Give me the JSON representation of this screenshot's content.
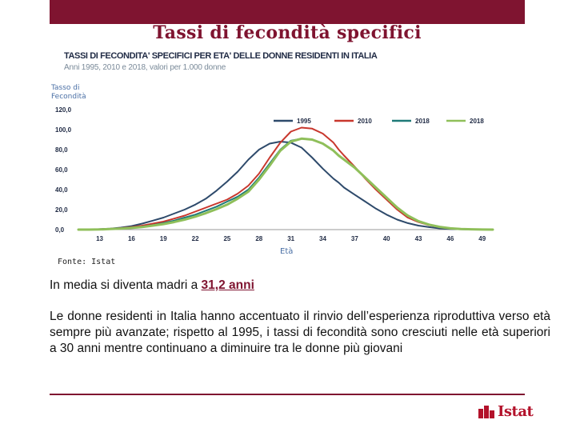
{
  "header": {
    "title": "Tassi di fecondità specifici"
  },
  "chart_data": {
    "type": "line",
    "title": "TASSI DI FECONDITA' SPECIFICI PER ETA' DELLE DONNE RESIDENTI IN ITALIA",
    "subtitle": "Anni 1995, 2010 e 2018, valori per 1.000 donne",
    "ylabel": "Tasso di Fecondità",
    "xlabel": "Età",
    "source": "Fonte: Istat",
    "ylim": [
      0,
      120
    ],
    "xlim": [
      11,
      50
    ],
    "y_ticks": [
      "0,0",
      "20,0",
      "40,0",
      "60,0",
      "80,0",
      "100,0",
      "120,0"
    ],
    "x_ticks": [
      13,
      16,
      19,
      22,
      25,
      28,
      31,
      34,
      37,
      40,
      43,
      46,
      49
    ],
    "legend_position": "top-right",
    "grid": false,
    "x": [
      11,
      12,
      13,
      14,
      15,
      16,
      17,
      18,
      19,
      20,
      21,
      22,
      23,
      24,
      25,
      26,
      27,
      28,
      29,
      30,
      31,
      32,
      33,
      34,
      35,
      35.5,
      36,
      37,
      38,
      39,
      40,
      41,
      42,
      43,
      44,
      45,
      46,
      47,
      48,
      49,
      50
    ],
    "series": [
      {
        "name": "1995",
        "color": "#2e4a6b",
        "values": [
          0,
          0,
          0.5,
          1,
          2,
          3.5,
          6,
          9,
          12,
          16,
          20,
          25,
          31,
          39,
          48,
          58,
          70,
          80,
          86,
          88,
          87,
          82,
          72,
          61,
          51,
          47,
          42,
          35,
          28,
          21,
          15,
          10,
          6.5,
          4,
          2.5,
          1.2,
          0.6,
          0.3,
          0.1,
          0.1,
          0
        ]
      },
      {
        "name": "2010",
        "color": "#c8372d",
        "values": [
          0,
          0,
          0.3,
          0.8,
          1.5,
          2.5,
          4,
          6,
          8,
          11,
          14,
          18,
          22,
          26,
          30,
          36,
          44,
          56,
          72,
          87,
          98,
          102,
          101,
          96,
          87,
          80,
          74,
          63,
          51,
          40,
          30,
          20,
          12,
          7.5,
          4.5,
          2.5,
          1.2,
          0.6,
          0.3,
          0.1,
          0
        ]
      },
      {
        "name": "2018",
        "color": "#1f7a78",
        "values": [
          0,
          0,
          0.3,
          0.7,
          1.2,
          2,
          3,
          4.5,
          6.5,
          9,
          12,
          15,
          19,
          23,
          28,
          33,
          40,
          52,
          66,
          80,
          89,
          91,
          90,
          86,
          79,
          74,
          70,
          62,
          52,
          42,
          32,
          22,
          14,
          8.5,
          5,
          2.7,
          1.3,
          0.6,
          0.3,
          0.1,
          0
        ]
      },
      {
        "name": "2018",
        "color": "#8fbf5a",
        "values": [
          0,
          0,
          0.2,
          0.6,
          1,
          1.7,
          2.6,
          4,
          5.5,
          7.5,
          10,
          13,
          16.5,
          20.5,
          25,
          31,
          38,
          50,
          64,
          79,
          88,
          91,
          90,
          86,
          79,
          74,
          70,
          62,
          52,
          42,
          32,
          22,
          14,
          8.5,
          5,
          2.7,
          1.3,
          0.6,
          0.3,
          0.1,
          0
        ]
      }
    ]
  },
  "main": {
    "headline_prefix": "In media si diventa madri a ",
    "headline_highlight": "31,2 anni",
    "paragraph": "Le donne residenti in Italia hanno accentuato il rinvio dell’esperienza riproduttiva verso età sempre più avanzate; rispetto al 1995, i tassi di fecondità sono cresciuti nelle età superiori a 30 anni mentre continuano a diminuire tra le donne più giovani"
  },
  "footer": {
    "logo_text": "Istat",
    "logo_color": "#b3122b"
  },
  "colors": {
    "accent": "#7f1430"
  }
}
